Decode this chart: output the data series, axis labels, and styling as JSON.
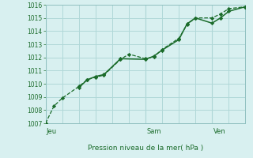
{
  "xlabel": "Pression niveau de la mer( hPa )",
  "bg_color": "#d8f0f0",
  "grid_color": "#b0d8d8",
  "line_color": "#1a6b2a",
  "ylim": [
    1007,
    1016
  ],
  "yticks": [
    1007,
    1008,
    1009,
    1010,
    1011,
    1012,
    1013,
    1014,
    1015,
    1016
  ],
  "day_labels": [
    "Jeu",
    "Sam",
    "Ven"
  ],
  "day_positions": [
    0.0,
    0.5,
    0.833
  ],
  "series1_x": [
    0.0,
    0.042,
    0.083,
    0.167,
    0.208,
    0.25,
    0.292,
    0.375,
    0.417,
    0.5,
    0.542,
    0.583,
    0.667,
    0.708,
    0.75,
    0.833,
    0.875,
    0.917,
    1.0
  ],
  "series1_y": [
    1007.0,
    1008.3,
    1008.9,
    1009.8,
    1010.3,
    1010.5,
    1010.65,
    1011.85,
    1012.25,
    1011.9,
    1012.05,
    1012.6,
    1013.45,
    1014.5,
    1015.0,
    1015.0,
    1015.3,
    1015.7,
    1015.85
  ],
  "series2_x": [
    0.167,
    0.208,
    0.25,
    0.292,
    0.375,
    0.5,
    0.542,
    0.583,
    0.667,
    0.708,
    0.75,
    0.833,
    0.875,
    0.917,
    1.0
  ],
  "series2_y": [
    1009.7,
    1010.3,
    1010.55,
    1010.7,
    1011.9,
    1011.85,
    1012.1,
    1012.55,
    1013.35,
    1014.55,
    1015.0,
    1014.6,
    1015.0,
    1015.5,
    1015.85
  ]
}
